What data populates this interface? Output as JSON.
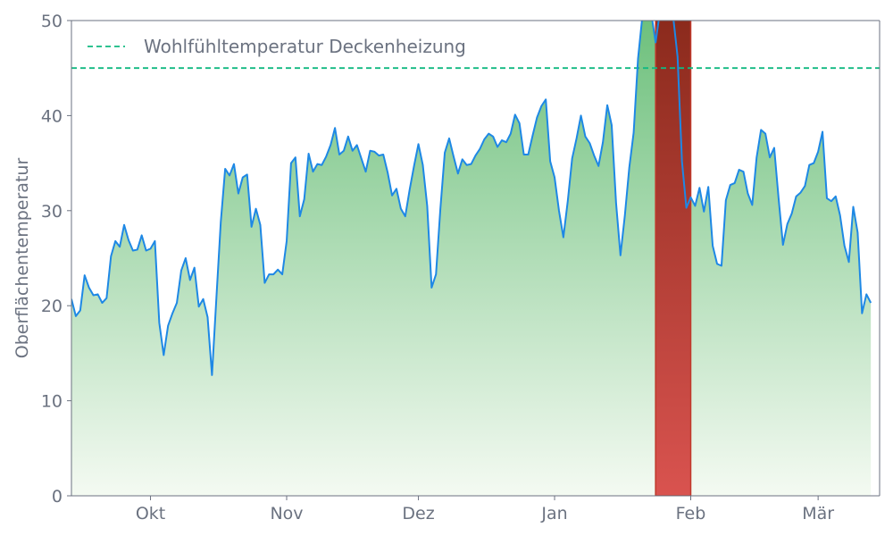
{
  "chart_data": {
    "type": "area",
    "title": "",
    "xlabel": "",
    "ylabel": "Oberflächentemperatur",
    "ylim": [
      0,
      50
    ],
    "yticks": [
      0,
      10,
      20,
      30,
      40,
      50
    ],
    "xlim": [
      "2023-09-13",
      "2024-03-15"
    ],
    "xticks": [
      {
        "label": "Okt",
        "date": "2023-10-01"
      },
      {
        "label": "Nov",
        "date": "2023-11-01"
      },
      {
        "label": "Dez",
        "date": "2023-12-01"
      },
      {
        "label": "Jan",
        "date": "2024-01-01"
      },
      {
        "label": "Feb",
        "date": "2024-02-01"
      },
      {
        "label": "Mär",
        "date": "2024-03-01"
      }
    ],
    "grid": false,
    "legend": {
      "position": "top-left",
      "entries": [
        "Wohlfühltemperatur Deckenheizung"
      ]
    },
    "reference_line": {
      "name": "Wohlfühltemperatur Deckenheizung",
      "y": 45,
      "style": "dashed",
      "color": "#10b981"
    },
    "highlight_band": {
      "x_start": "2024-01-24",
      "x_end": "2024-02-01",
      "color_top": "#8b2a1c",
      "color_bottom": "#d9534f"
    },
    "series": [
      {
        "line_color": "#1e88e5",
        "fill_color_top": "#6bbf7a",
        "fill_color_bottom": "#f4faf2",
        "start_date": "2023-09-13",
        "values": [
          20.7,
          18.9,
          19.5,
          23.2,
          21.9,
          21.1,
          21.2,
          20.3,
          20.8,
          25.2,
          26.8,
          26.2,
          28.5,
          26.9,
          25.8,
          25.9,
          27.4,
          25.8,
          26.0,
          26.8,
          18.2,
          14.8,
          17.9,
          19.2,
          20.3,
          23.7,
          25.0,
          22.7,
          24.0,
          19.9,
          20.7,
          18.8,
          12.7,
          20.8,
          28.8,
          34.4,
          33.7,
          34.9,
          31.8,
          33.5,
          33.8,
          28.3,
          30.2,
          28.5,
          22.4,
          23.3,
          23.3,
          23.8,
          23.3,
          26.8,
          35.0,
          35.6,
          29.4,
          31.2,
          36.0,
          34.1,
          34.9,
          34.8,
          35.7,
          36.9,
          38.7,
          35.9,
          36.3,
          37.8,
          36.3,
          36.9,
          35.5,
          34.1,
          36.3,
          36.2,
          35.8,
          35.9,
          34.0,
          31.6,
          32.3,
          30.2,
          29.4,
          32.2,
          34.7,
          37.0,
          34.8,
          30.5,
          21.9,
          23.3,
          30.2,
          36.1,
          37.6,
          35.7,
          33.9,
          35.4,
          34.8,
          34.9,
          35.8,
          36.5,
          37.5,
          38.1,
          37.8,
          36.7,
          37.4,
          37.2,
          38.1,
          40.1,
          39.2,
          35.9,
          35.9,
          37.9,
          39.8,
          41.0,
          41.7,
          35.2,
          33.5,
          30.0,
          27.2,
          31.0,
          35.5,
          37.6,
          40.0,
          37.8,
          37.1,
          35.8,
          34.7,
          37.2,
          41.1,
          39.0,
          30.8,
          25.3,
          29.5,
          34.5,
          38.2,
          46.0,
          50.5,
          51.0,
          50.8,
          47.7,
          51.0,
          51.0,
          50.9,
          50.4,
          46.2,
          35.2,
          30.3,
          31.4,
          30.5,
          32.4,
          29.9,
          32.5,
          26.3,
          24.4,
          24.2,
          31.1,
          32.7,
          32.9,
          34.3,
          34.1,
          31.8,
          30.6,
          35.6,
          38.5,
          38.1,
          35.6,
          36.6,
          31.3,
          26.4,
          28.6,
          29.7,
          31.5,
          31.9,
          32.6,
          34.8,
          35.0,
          36.2,
          38.3,
          31.3,
          31.0,
          31.5,
          29.5,
          26.3,
          24.6,
          30.4,
          27.7,
          19.2,
          21.2,
          20.3
        ]
      }
    ]
  }
}
